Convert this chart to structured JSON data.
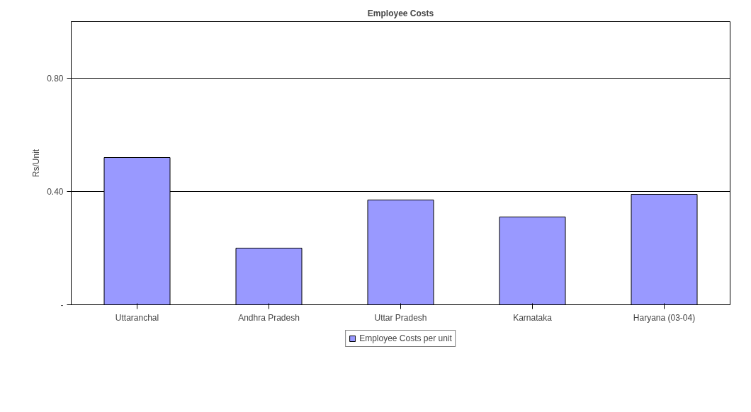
{
  "chart_data": {
    "type": "bar",
    "title": "Employee Costs",
    "ylabel": "Rs/Unit",
    "categories": [
      "Uttaranchal",
      "Andhra Pradesh",
      "Uttar Pradesh",
      "Karnataka",
      "Haryana (03-04)"
    ],
    "series": [
      {
        "name": "Employee Costs per unit",
        "color": "#9999ff",
        "values": [
          0.52,
          0.2,
          0.37,
          0.31,
          0.39
        ]
      }
    ],
    "ylim": [
      0,
      1.0
    ],
    "yticks": [
      {
        "value": 0,
        "label": "-"
      },
      {
        "value": 0.4,
        "label": "0.40"
      },
      {
        "value": 0.8,
        "label": "0.80"
      }
    ],
    "grid": "y",
    "legend": "bottom"
  }
}
